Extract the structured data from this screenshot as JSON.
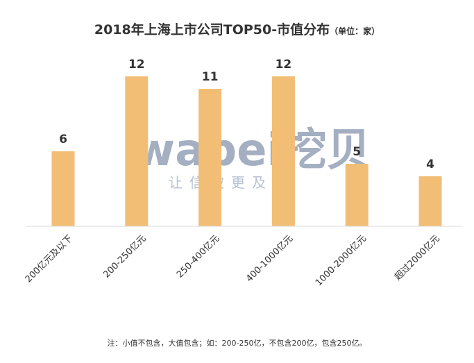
{
  "chart_data": {
    "type": "bar",
    "title": "2018年上海上市公司TOP50-市值分布",
    "unit_label": "（单位：家）",
    "categories": [
      "200亿元及以下",
      "200-250亿元",
      "250-400亿元",
      "400-1000亿元",
      "1000-2000亿元",
      "超过2000亿元"
    ],
    "values": [
      6,
      12,
      11,
      12,
      5,
      4
    ],
    "ylim": [
      0,
      12
    ],
    "grid": false,
    "bar_color": "#F2BE75",
    "axis_color": "#D9D9D9"
  },
  "watermark": {
    "logo": "wabei挖贝",
    "tagline": "让信披更及时"
  },
  "footnote": "注：小值不包含，大值包含；如：200-250亿，不包含200亿，包含250亿。"
}
